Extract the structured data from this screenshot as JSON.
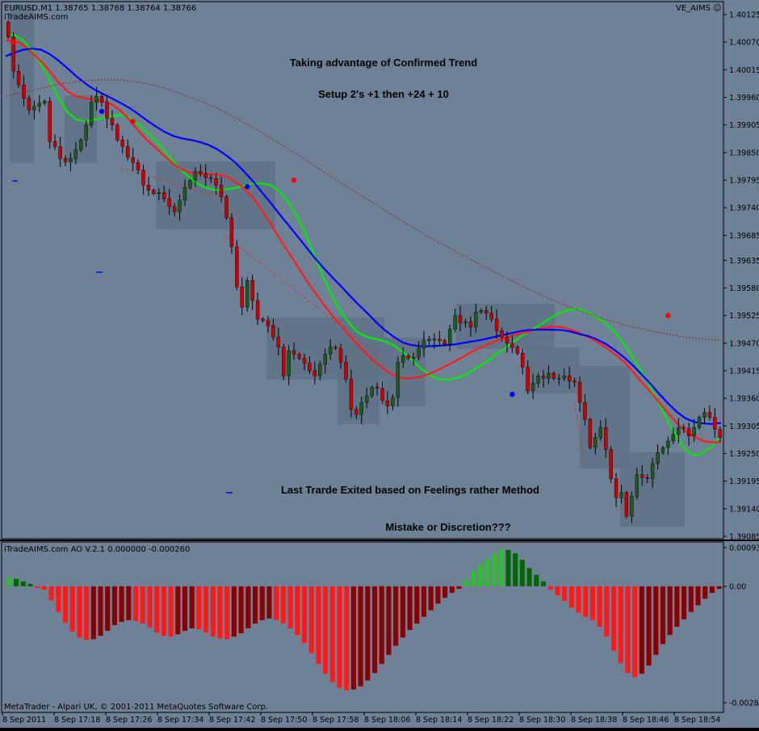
{
  "window": {
    "symbol_header": "EURUSD,M1  1.38765 1.38768 1.38764 1.38766",
    "site_label": "iTradeAIMS.com",
    "indicator_badge": "VE_AIMS ☺",
    "footer": "MetaTrader - Alpari UK, © 2001-2011 MetaQuotes Software Corp."
  },
  "colors": {
    "background": "#6f8197",
    "bull_candle": "#1e5a1e",
    "bear_candle": "#cc0000",
    "ma_fast": "#00ee00",
    "ma_mid": "#ff1a1a",
    "ma_slow": "#0000ff",
    "ma_long": "#8a2a2a",
    "ao_up_green": "#33bb33",
    "ao_down_green": "#006600",
    "ao_up_red": "#8a0000",
    "ao_down_red": "#ff1a1a"
  },
  "annotations": {
    "line1": "Taking advantage of Confirmed Trend",
    "line2": "Setup 2's  +1 then +24  + 10",
    "line3": "Last Trarde Exited based on Feelings rather Method",
    "line4": "Mistake or Discretion???"
  },
  "chart_data": [
    {
      "type": "candlestick",
      "ylim": [
        1.39085,
        1.40125
      ],
      "y_ticks": [
        "1.40125",
        "1.40070",
        "1.40015",
        "1.39960",
        "1.39905",
        "1.39850",
        "1.39795",
        "1.39740",
        "1.39685",
        "1.39635",
        "1.39580",
        "1.39525",
        "1.39470",
        "1.39415",
        "1.39360",
        "1.39305",
        "1.39250",
        "1.39195",
        "1.39140",
        "1.39085"
      ],
      "x_labels": [
        "8 Sep 2011",
        "8 Sep 17:18",
        "8 Sep 17:26",
        "8 Sep 17:34",
        "8 Sep 17:42",
        "8 Sep 17:50",
        "8 Sep 17:58",
        "8 Sep 18:06",
        "8 Sep 18:14",
        "8 Sep 18:22",
        "8 Sep 18:30",
        "8 Sep 18:38",
        "8 Sep 18:46",
        "8 Sep 18:54"
      ],
      "close": [
        1.4008,
        1.40012,
        1.39985,
        1.39958,
        1.39935,
        1.39942,
        1.39948,
        1.39952,
        1.39872,
        1.39862,
        1.39838,
        1.39832,
        1.39838,
        1.39855,
        1.39875,
        1.39905,
        1.3995,
        1.39962,
        1.3995,
        1.39918,
        1.39905,
        1.39875,
        1.39862,
        1.3984,
        1.3983,
        1.39815,
        1.39785,
        1.39775,
        1.39768,
        1.3977,
        1.39758,
        1.39742,
        1.39732,
        1.39755,
        1.3978,
        1.39795,
        1.39812,
        1.39808,
        1.398,
        1.39798,
        1.39785,
        1.39762,
        1.3972,
        1.39662,
        1.39582,
        1.39542,
        1.39595,
        1.39555,
        1.39518,
        1.39515,
        1.39505,
        1.39482,
        1.39462,
        1.39405,
        1.39455,
        1.39448,
        1.3944,
        1.3943,
        1.39415,
        1.39405,
        1.39428,
        1.39448,
        1.39462,
        1.3946,
        1.39432,
        1.39398,
        1.39338,
        1.39328,
        1.39352,
        1.39365,
        1.39382,
        1.3938,
        1.39355,
        1.39345,
        1.39362,
        1.39432,
        1.39445,
        1.3944,
        1.39442,
        1.3946,
        1.39475,
        1.39478,
        1.39478,
        1.39475,
        1.39468,
        1.39498,
        1.39525,
        1.3951,
        1.39512,
        1.39502,
        1.39532,
        1.39535,
        1.3953,
        1.39518,
        1.39495,
        1.39482,
        1.3947,
        1.39462,
        1.3945,
        1.39422,
        1.39375,
        1.3939,
        1.39405,
        1.394,
        1.3941,
        1.394,
        1.394,
        1.39405,
        1.39395,
        1.39392,
        1.39352,
        1.39318,
        1.39262,
        1.39282,
        1.39302,
        1.39258,
        1.392,
        1.39162,
        1.39172,
        1.39125,
        1.39165,
        1.39208,
        1.39202,
        1.392,
        1.3923,
        1.39252,
        1.39262,
        1.39275,
        1.39288,
        1.39302,
        1.393,
        1.39285,
        1.39302,
        1.39322,
        1.39332,
        1.39322,
        1.39298,
        1.39282
      ],
      "indicators": [
        {
          "name": "MA fast",
          "color": "#00ee00",
          "values": [
            1.40088,
            1.40084,
            1.40073,
            1.40053,
            1.40027,
            1.39994,
            1.39958,
            1.3993,
            1.39916,
            1.39912,
            1.39915,
            1.39919,
            1.39923,
            1.39924,
            1.39919,
            1.39907,
            1.3989,
            1.39873,
            1.39853,
            1.39832,
            1.39813,
            1.39797,
            1.39785,
            1.39778,
            1.39775,
            1.39777,
            1.39779,
            1.39784,
            1.39788,
            1.39788,
            1.39785,
            1.39773,
            1.39752,
            1.39722,
            1.39686,
            1.39643,
            1.396,
            1.39562,
            1.39532,
            1.39507,
            1.3949,
            1.39482,
            1.39478,
            1.39473,
            1.39465,
            1.39452,
            1.39437,
            1.3942,
            1.39407,
            1.39398,
            1.39397,
            1.394,
            1.39406,
            1.39417,
            1.39428,
            1.3944,
            1.39453,
            1.39466,
            1.39479,
            1.39492,
            1.39501,
            1.39512,
            1.39523,
            1.39532,
            1.39537,
            1.39537,
            1.39531,
            1.39521,
            1.39509,
            1.39492,
            1.39469,
            1.39442,
            1.39414,
            1.39383,
            1.39348,
            1.39315,
            1.39282,
            1.39258,
            1.39246,
            1.39252,
            1.39265,
            1.39285
          ]
        },
        {
          "name": "MA mid",
          "color": "#ff1a1a",
          "values": [
            1.40074,
            1.40072,
            1.40064,
            1.40049,
            1.40032,
            1.40012,
            1.3999,
            1.39972,
            1.39962,
            1.39958,
            1.39955,
            1.39953,
            1.39946,
            1.39934,
            1.39915,
            1.39894,
            1.39875,
            1.39859,
            1.39843,
            1.39827,
            1.39816,
            1.39809,
            1.39807,
            1.39807,
            1.39806,
            1.39802,
            1.39792,
            1.39779,
            1.3976,
            1.39735,
            1.39708,
            1.39679,
            1.39652,
            1.39625,
            1.39597,
            1.39572,
            1.39547,
            1.39525,
            1.39504,
            1.39484,
            1.39464,
            1.39446,
            1.3943,
            1.39416,
            1.39406,
            1.394,
            1.394,
            1.39403,
            1.39409,
            1.39417,
            1.39426,
            1.39435,
            1.39445,
            1.39455,
            1.39463,
            1.39471,
            1.39477,
            1.39483,
            1.39488,
            1.39492,
            1.39497,
            1.39501,
            1.39503,
            1.39502,
            1.39497,
            1.3949,
            1.39482,
            1.39472,
            1.39461,
            1.39448,
            1.39433,
            1.39414,
            1.39392,
            1.39373,
            1.39352,
            1.39331,
            1.39311,
            1.39294,
            1.39283,
            1.39275,
            1.39272,
            1.39273
          ]
        },
        {
          "name": "MA slow",
          "color": "#0000ff",
          "values": [
            1.40042,
            1.40049,
            1.40055,
            1.40057,
            1.40055,
            1.40046,
            1.40033,
            1.40018,
            1.40002,
            1.39988,
            1.39976,
            1.39967,
            1.39958,
            1.39949,
            1.39939,
            1.39927,
            1.39914,
            1.39902,
            1.39891,
            1.39883,
            1.39878,
            1.39875,
            1.39871,
            1.39865,
            1.39856,
            1.39844,
            1.3983,
            1.39812,
            1.39793,
            1.39771,
            1.3975,
            1.39727,
            1.39706,
            1.39684,
            1.39662,
            1.3964,
            1.3962,
            1.39601,
            1.39583,
            1.39564,
            1.39546,
            1.39529,
            1.39511,
            1.39495,
            1.39482,
            1.39471,
            1.39466,
            1.39464,
            1.39464,
            1.39465,
            1.39466,
            1.39468,
            1.39471,
            1.39474,
            1.39477,
            1.39481,
            1.39485,
            1.39489,
            1.39493,
            1.39496,
            1.39497,
            1.39497,
            1.39497,
            1.39496,
            1.39493,
            1.39488,
            1.39484,
            1.39477,
            1.39468,
            1.39456,
            1.39442,
            1.39426,
            1.39408,
            1.39389,
            1.39369,
            1.3935,
            1.39333,
            1.3932,
            1.39313,
            1.3931,
            1.39309,
            1.39311
          ]
        },
        {
          "name": "MA long",
          "color": "#8a2a2a",
          "values": [
            1.39962,
            1.39966,
            1.3997,
            1.39974,
            1.39978,
            1.39982,
            1.39986,
            1.39989,
            1.39991,
            1.39993,
            1.39994,
            1.39995,
            1.39995,
            1.39995,
            1.39993,
            1.3999,
            1.39987,
            1.39983,
            1.39978,
            1.39972,
            1.39966,
            1.3996,
            1.39953,
            1.39946,
            1.39938,
            1.39929,
            1.3992,
            1.3991,
            1.399,
            1.3989,
            1.39879,
            1.39868,
            1.39857,
            1.39846,
            1.39835,
            1.39823,
            1.39812,
            1.398,
            1.39789,
            1.39778,
            1.39767,
            1.39756,
            1.39745,
            1.39734,
            1.39723,
            1.39712,
            1.39702,
            1.39691,
            1.39681,
            1.39671,
            1.39662,
            1.39652,
            1.39643,
            1.39633,
            1.39624,
            1.39615,
            1.39606,
            1.39597,
            1.39588,
            1.39579,
            1.39571,
            1.39563,
            1.39555,
            1.39548,
            1.39541,
            1.39535,
            1.39529,
            1.39523,
            1.39517,
            1.39512,
            1.39507,
            1.39503,
            1.39499,
            1.39495,
            1.39491,
            1.39488,
            1.39485,
            1.39482,
            1.3948,
            1.39478,
            1.39477,
            1.39476
          ]
        }
      ],
      "markers": [
        {
          "bar": 1,
          "price": 1.4007,
          "color": "red"
        },
        {
          "bar": 18,
          "price": 1.39932,
          "color": "blue"
        },
        {
          "bar": 24,
          "price": 1.39912,
          "color": "red"
        },
        {
          "bar": 46,
          "price": 1.39782,
          "color": "blue"
        },
        {
          "bar": 55,
          "price": 1.39795,
          "color": "red"
        },
        {
          "bar": 97,
          "price": 1.39368,
          "color": "blue"
        },
        {
          "bar": 127,
          "price": 1.39525,
          "color": "red"
        },
        {
          "bar": 169,
          "price": 1.39238,
          "color": "blue"
        }
      ]
    },
    {
      "type": "bar",
      "title": "iTradeAIMS.com AO V.2.1 0.000000 -0.000260",
      "ylim": [
        -0.00282,
        0.000936
      ],
      "y_ticks": [
        "0.000936",
        "0.00",
        "-0.00282"
      ],
      "values": [
        0.00022,
        0.00018,
        0.00012,
        6e-05,
        -4e-05,
        -8e-05,
        -0.00034,
        -0.00062,
        -0.00088,
        -0.0011,
        -0.00124,
        -0.0013,
        -0.00128,
        -0.0012,
        -0.00108,
        -0.00094,
        -0.00086,
        -0.00082,
        -0.00084,
        -0.0009,
        -0.001,
        -0.00112,
        -0.0012,
        -0.00122,
        -0.00116,
        -0.00108,
        -0.00102,
        -0.00104,
        -0.00112,
        -0.00122,
        -0.00126,
        -0.00128,
        -0.00122,
        -0.00114,
        -0.00102,
        -0.0009,
        -0.00082,
        -0.00078,
        -0.00082,
        -0.0009,
        -0.00102,
        -0.00118,
        -0.00138,
        -0.00162,
        -0.00188,
        -0.00212,
        -0.00232,
        -0.00246,
        -0.00252,
        -0.0025,
        -0.00242,
        -0.00228,
        -0.0021,
        -0.00188,
        -0.00166,
        -0.00144,
        -0.00124,
        -0.00106,
        -0.0009,
        -0.00074,
        -0.00058,
        -0.00042,
        -0.00028,
        -0.00016,
        -6e-05,
        0.00014,
        0.00036,
        0.00052,
        0.00066,
        0.0008,
        0.0009,
        0.00088,
        0.0008,
        0.00064,
        0.00044,
        0.00028,
        0.00012,
        -8e-05,
        -0.00022,
        -0.00036,
        -0.00052,
        -0.00064,
        -0.00074,
        -0.00082,
        -0.00098,
        -0.00122,
        -0.00156,
        -0.00186,
        -0.0021,
        -0.0022,
        -0.00212,
        -0.00192,
        -0.00166,
        -0.0014,
        -0.00118,
        -0.00098,
        -0.0008,
        -0.00062,
        -0.00046,
        -0.0003,
        -0.00016,
        -6e-05
      ]
    }
  ]
}
